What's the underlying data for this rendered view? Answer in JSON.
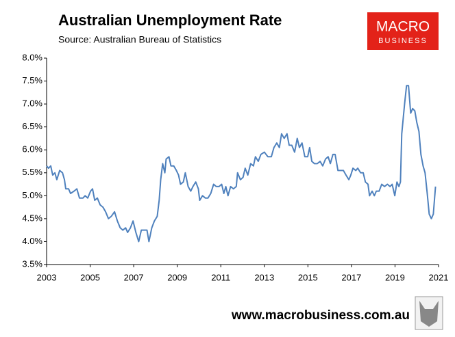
{
  "chart_data": {
    "type": "line",
    "title": "Australian Unemployment Rate",
    "subtitle": "Source: Australian Bureau of Statistics",
    "x": [
      2003.0,
      2003.09,
      2003.19,
      2003.28,
      2003.38,
      2003.47,
      2003.6,
      2003.73,
      2003.82,
      2003.88,
      2004.01,
      2004.1,
      2004.26,
      2004.39,
      2004.51,
      2004.67,
      2004.77,
      2004.89,
      2005.02,
      2005.11,
      2005.21,
      2005.33,
      2005.46,
      2005.59,
      2005.71,
      2005.84,
      2005.97,
      2006.12,
      2006.25,
      2006.38,
      2006.5,
      2006.63,
      2006.72,
      2006.85,
      2006.97,
      2007.1,
      2007.23,
      2007.35,
      2007.48,
      2007.61,
      2007.7,
      2007.83,
      2007.95,
      2008.08,
      2008.17,
      2008.24,
      2008.33,
      2008.43,
      2008.49,
      2008.62,
      2008.71,
      2008.84,
      2008.96,
      2009.06,
      2009.15,
      2009.28,
      2009.37,
      2009.5,
      2009.62,
      2009.72,
      2009.85,
      2009.97,
      2010.03,
      2010.16,
      2010.29,
      2010.41,
      2010.54,
      2010.67,
      2010.79,
      2010.92,
      2011.04,
      2011.14,
      2011.23,
      2011.33,
      2011.45,
      2011.58,
      2011.71,
      2011.77,
      2011.9,
      2012.02,
      2012.12,
      2012.24,
      2012.37,
      2012.5,
      2012.59,
      2012.72,
      2012.84,
      2013.0,
      2013.16,
      2013.32,
      2013.44,
      2013.57,
      2013.69,
      2013.79,
      2013.91,
      2014.04,
      2014.14,
      2014.26,
      2014.39,
      2014.51,
      2014.61,
      2014.73,
      2014.86,
      2014.99,
      2015.08,
      2015.18,
      2015.3,
      2015.43,
      2015.56,
      2015.68,
      2015.81,
      2015.93,
      2016.03,
      2016.15,
      2016.25,
      2016.38,
      2016.5,
      2016.63,
      2016.75,
      2016.88,
      2016.97,
      2017.07,
      2017.2,
      2017.29,
      2017.42,
      2017.54,
      2017.64,
      2017.76,
      2017.83,
      2017.95,
      2018.05,
      2018.14,
      2018.27,
      2018.39,
      2018.52,
      2018.65,
      2018.77,
      2018.87,
      2018.99,
      2019.09,
      2019.18,
      2019.25,
      2019.31,
      2019.44,
      2019.53,
      2019.62,
      2019.72,
      2019.81,
      2019.91,
      2020.0,
      2020.1,
      2020.19,
      2020.29,
      2020.38,
      2020.48,
      2020.57,
      2020.67,
      2020.76,
      2020.86
    ],
    "series": [
      {
        "color": "#4f81bd",
        "values": [
          5.65,
          5.6,
          5.65,
          5.45,
          5.5,
          5.35,
          5.55,
          5.5,
          5.35,
          5.15,
          5.15,
          5.05,
          5.1,
          5.15,
          4.95,
          4.95,
          5.0,
          4.95,
          5.1,
          5.15,
          4.9,
          4.95,
          4.8,
          4.75,
          4.65,
          4.5,
          4.55,
          4.65,
          4.45,
          4.3,
          4.25,
          4.3,
          4.2,
          4.3,
          4.45,
          4.2,
          4.0,
          4.25,
          4.25,
          4.25,
          4.0,
          4.3,
          4.45,
          4.55,
          4.9,
          5.35,
          5.7,
          5.5,
          5.8,
          5.85,
          5.65,
          5.65,
          5.55,
          5.45,
          5.25,
          5.3,
          5.5,
          5.2,
          5.1,
          5.2,
          5.3,
          5.15,
          4.9,
          5.0,
          4.95,
          4.95,
          5.05,
          5.25,
          5.2,
          5.2,
          5.25,
          5.05,
          5.2,
          5.0,
          5.2,
          5.15,
          5.2,
          5.5,
          5.35,
          5.4,
          5.6,
          5.45,
          5.7,
          5.65,
          5.85,
          5.75,
          5.9,
          5.95,
          5.85,
          5.85,
          6.05,
          6.15,
          6.05,
          6.35,
          6.25,
          6.35,
          6.1,
          6.1,
          5.95,
          6.25,
          6.05,
          6.15,
          5.85,
          5.85,
          6.05,
          5.75,
          5.7,
          5.7,
          5.75,
          5.65,
          5.8,
          5.85,
          5.7,
          5.9,
          5.9,
          5.55,
          5.55,
          5.55,
          5.45,
          5.35,
          5.45,
          5.6,
          5.55,
          5.6,
          5.5,
          5.5,
          5.3,
          5.25,
          5.0,
          5.1,
          5.0,
          5.1,
          5.1,
          5.25,
          5.2,
          5.25,
          5.2,
          5.25,
          5.0,
          5.3,
          5.2,
          5.3,
          6.35,
          7.0,
          7.4,
          7.4,
          6.8,
          6.9,
          6.85,
          6.6,
          6.4,
          5.9,
          5.65,
          5.5,
          5.05,
          4.6,
          4.5,
          4.6,
          5.2
        ]
      }
    ],
    "xlim": [
      2003,
      2021
    ],
    "xticks": [
      2003,
      2005,
      2007,
      2009,
      2011,
      2013,
      2015,
      2017,
      2019,
      2021
    ],
    "ylim": [
      3.5,
      8.0
    ],
    "yticks": [
      {
        "value": 3.5,
        "label": "3.5%"
      },
      {
        "value": 4.0,
        "label": "4.0%"
      },
      {
        "value": 4.5,
        "label": "4.5%"
      },
      {
        "value": 5.0,
        "label": "5.0%"
      },
      {
        "value": 5.5,
        "label": "5.5%"
      },
      {
        "value": 6.0,
        "label": "6.0%"
      },
      {
        "value": 6.5,
        "label": "6.5%"
      },
      {
        "value": 7.0,
        "label": "7.0%"
      },
      {
        "value": 7.5,
        "label": "7.5%"
      },
      {
        "value": 8.0,
        "label": "8.0%"
      }
    ],
    "grid": false
  },
  "branding": {
    "logo_top": "MACRO",
    "logo_bottom": "BUSINESS",
    "website": "www.macrobusiness.com.au"
  }
}
